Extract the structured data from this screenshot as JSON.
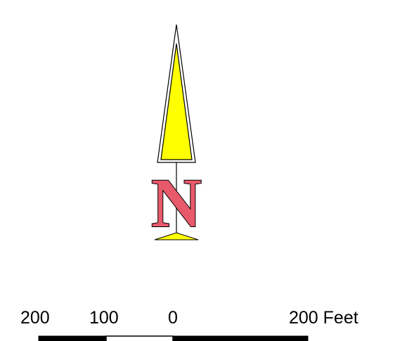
{
  "north_arrow": {
    "letter": "N",
    "needle_fill": "#ffff00",
    "letter_fill": "#e8596b",
    "outline": "#000000"
  },
  "scale_bar": {
    "labels": [
      "200",
      "100",
      "0",
      "200 Feet"
    ],
    "segment_colors": [
      "#000000",
      "#ffffff",
      "#000000"
    ],
    "outline": "#000000"
  }
}
